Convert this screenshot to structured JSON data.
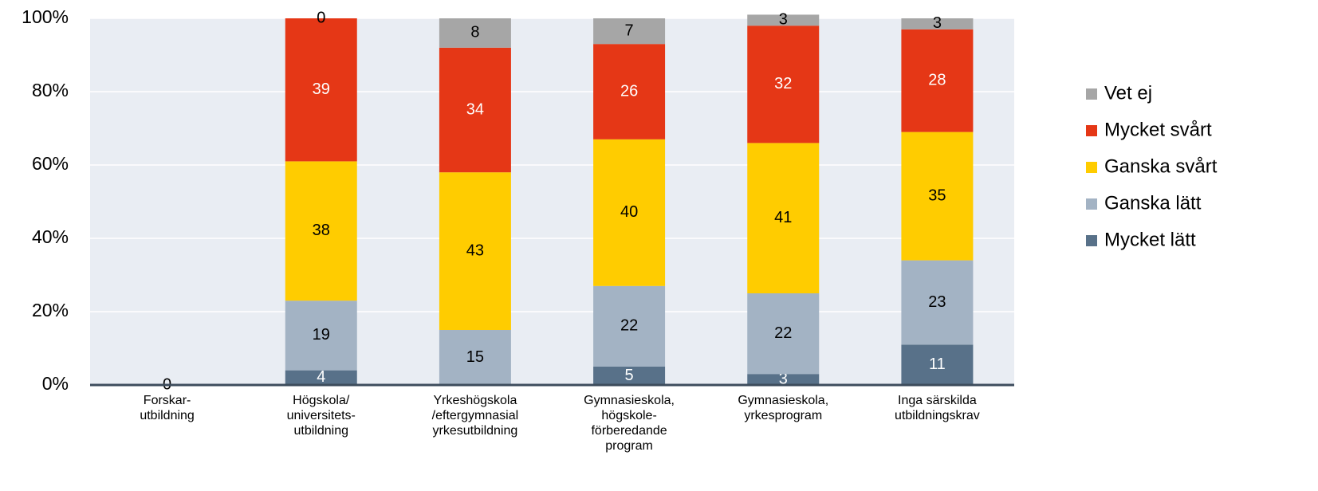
{
  "chart_data": {
    "type": "stacked_bar",
    "categories": [
      "Forskar-\nutbildning",
      "Högskola/\nuniversitets-\nutbildning",
      "Yrkeshögskola\n/eftergymnasial\nyrkesutbildning",
      "Gymnasieskola,\nhögskole-\nförberedande\nprogram",
      "Gymnasieskola,\nyrkesprogram",
      "Inga särskilda\nutbildningskrav"
    ],
    "series": [
      {
        "name": "Mycket lätt",
        "color": "#587189",
        "label_color": "#ffffff",
        "values": [
          0,
          4,
          0,
          5,
          3,
          11
        ]
      },
      {
        "name": "Ganska lätt",
        "color": "#a3b3c4",
        "label_color": "#000000",
        "values": [
          null,
          19,
          15,
          22,
          22,
          23
        ]
      },
      {
        "name": "Ganska svårt",
        "color": "#ffcc00",
        "label_color": "#000000",
        "values": [
          null,
          38,
          43,
          40,
          41,
          35
        ]
      },
      {
        "name": "Mycket svårt",
        "color": "#e53716",
        "label_color": "#ffffff",
        "values": [
          null,
          39,
          34,
          26,
          32,
          28
        ]
      },
      {
        "name": "Vet ej",
        "color": "#a6a6a6",
        "label_color": "#000000",
        "values": [
          null,
          0,
          8,
          7,
          3,
          3
        ]
      }
    ],
    "ylim": [
      0,
      100
    ],
    "yticks": [
      {
        "value": 0,
        "label": "0%"
      },
      {
        "value": 20,
        "label": "20%"
      },
      {
        "value": 40,
        "label": "40%"
      },
      {
        "value": 60,
        "label": "60%"
      },
      {
        "value": 80,
        "label": "80%"
      },
      {
        "value": 100,
        "label": "100%"
      }
    ],
    "grid": true,
    "legend": "right"
  }
}
